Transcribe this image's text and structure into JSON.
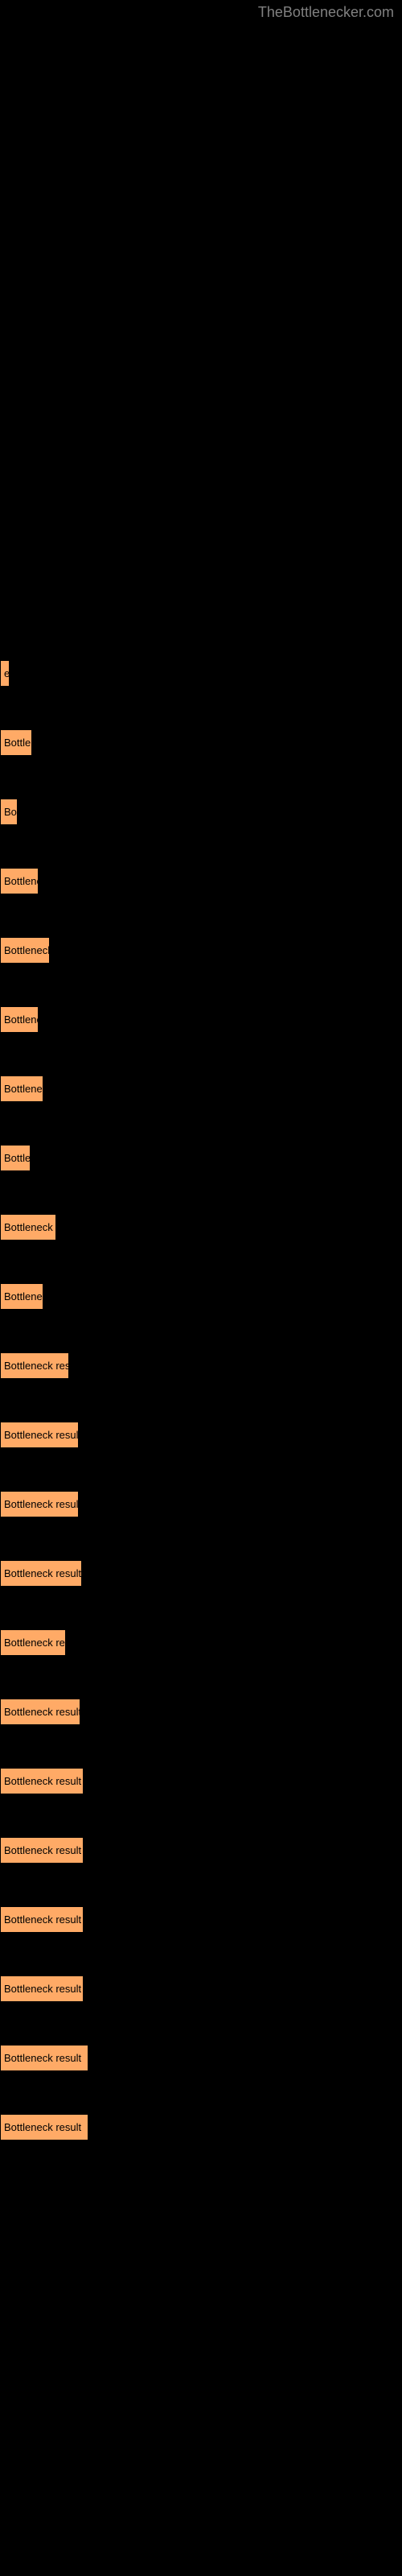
{
  "watermark": "TheBottlenecker.com",
  "bar_color": "#ffaa66",
  "bar_border": "#000000",
  "background_color": "#000000",
  "text_color": "#000000",
  "font_size": 13,
  "results": [
    {
      "label": "e",
      "width": 12
    },
    {
      "label": "Bottler",
      "width": 40
    },
    {
      "label": "Bo",
      "width": 22
    },
    {
      "label": "Bottlene",
      "width": 48
    },
    {
      "label": "Bottleneck",
      "width": 62
    },
    {
      "label": "Bottlene",
      "width": 48
    },
    {
      "label": "Bottlenec",
      "width": 54
    },
    {
      "label": "Bottle",
      "width": 38
    },
    {
      "label": "Bottleneck r",
      "width": 70
    },
    {
      "label": "Bottlenec",
      "width": 54
    },
    {
      "label": "Bottleneck resu",
      "width": 86
    },
    {
      "label": "Bottleneck result",
      "width": 98
    },
    {
      "label": "Bottleneck result",
      "width": 98
    },
    {
      "label": "Bottleneck result",
      "width": 102
    },
    {
      "label": "Bottleneck res",
      "width": 82
    },
    {
      "label": "Bottleneck result",
      "width": 100
    },
    {
      "label": "Bottleneck result",
      "width": 104
    },
    {
      "label": "Bottleneck result",
      "width": 104
    },
    {
      "label": "Bottleneck result",
      "width": 104
    },
    {
      "label": "Bottleneck result",
      "width": 104
    },
    {
      "label": "Bottleneck result",
      "width": 110
    },
    {
      "label": "Bottleneck result",
      "width": 110
    }
  ]
}
